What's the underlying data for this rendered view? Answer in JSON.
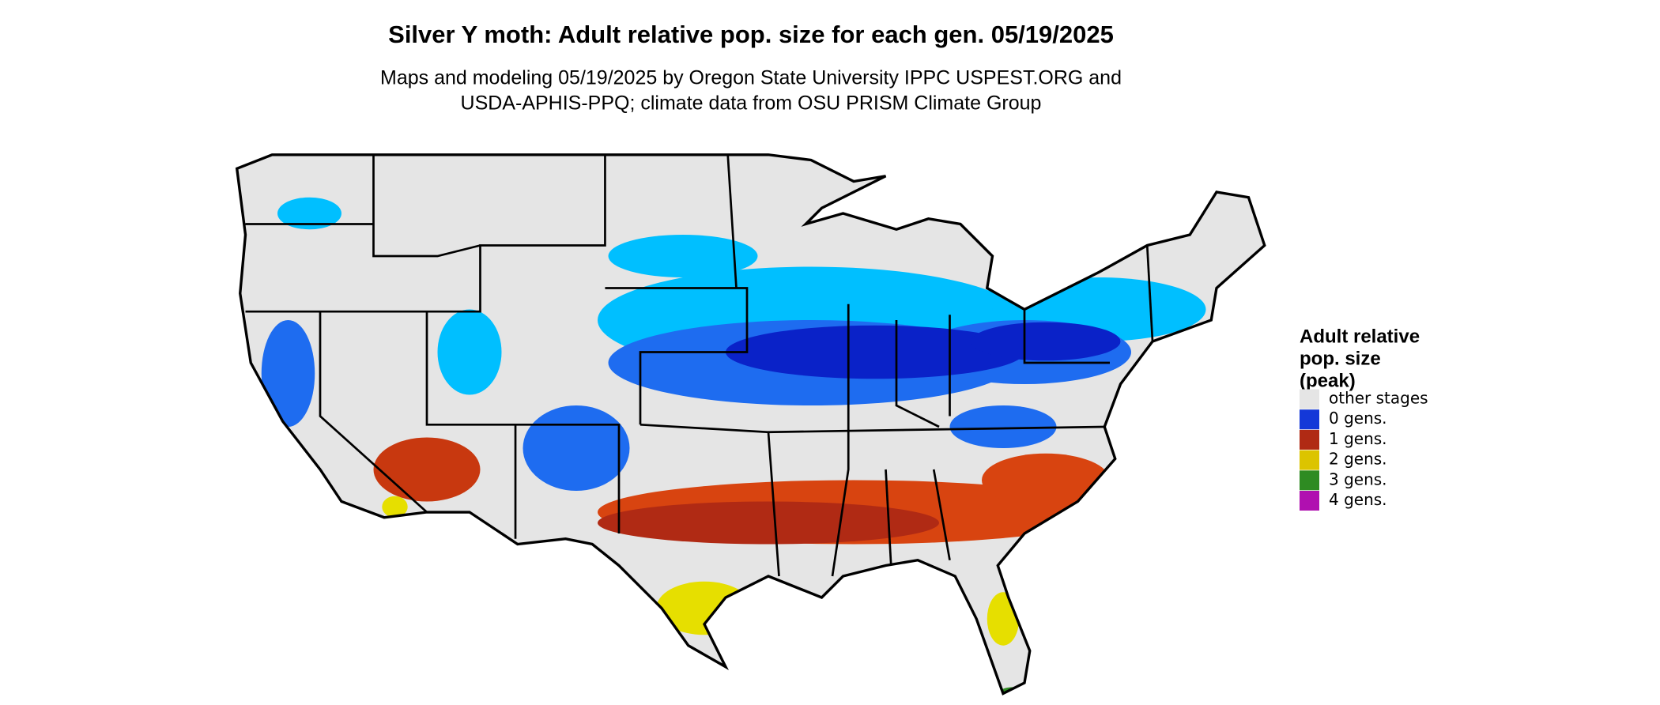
{
  "title": "Silver Y moth: Adult relative pop. size for each gen. 05/19/2025",
  "subtitle": [
    "Maps and modeling 05/19/2025 by Oregon State University IPPC USPEST.ORG and",
    "USDA-APHIS-PPQ; climate data from OSU PRISM Climate Group"
  ],
  "legend": {
    "title": [
      "Adult relative",
      "pop. size",
      "(peak)"
    ],
    "items": [
      {
        "label": "other stages",
        "color": "#e5e5e5"
      },
      {
        "label": "0 gens.",
        "color": "#1438d8"
      },
      {
        "label": "1 gens.",
        "color": "#b02a14"
      },
      {
        "label": "2 gens.",
        "color": "#dcc400"
      },
      {
        "label": "3 gens.",
        "color": "#2e8b22"
      },
      {
        "label": "4 gens.",
        "color": "#b010b0"
      }
    ]
  }
}
